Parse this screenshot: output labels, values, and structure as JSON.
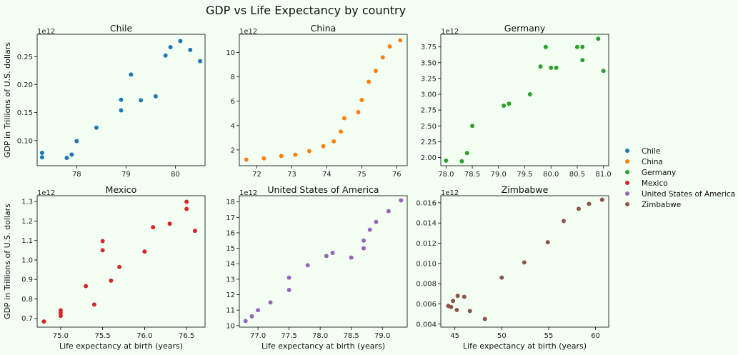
{
  "figure": {
    "title": "GDP vs Life Expectancy by country",
    "xlabel": "Life expectancy at birth (years)",
    "ylabel": "GDP in Trillions of U.S. dollars",
    "offset_label": "1e12"
  },
  "legend": {
    "placement": "right",
    "entries": [
      {
        "name": "Chile",
        "color": "#1f77b4"
      },
      {
        "name": "China",
        "color": "#ff7f0e"
      },
      {
        "name": "Germany",
        "color": "#2ca02c"
      },
      {
        "name": "Mexico",
        "color": "#d62728"
      },
      {
        "name": "United States of America",
        "color": "#9467bd"
      },
      {
        "name": "Zimbabwe",
        "color": "#8c564b"
      }
    ]
  },
  "chart_data": [
    {
      "type": "scatter",
      "title": "Chile",
      "color": "#1f77b4",
      "xlim": [
        77.2,
        80.6
      ],
      "ylim": [
        0.055,
        0.29
      ],
      "xticks": [
        78,
        79,
        80
      ],
      "xtick_labels": [
        "78",
        "79",
        "80"
      ],
      "yticks": [
        0.1,
        0.15,
        0.2,
        0.25
      ],
      "ytick_labels": [
        "0.10",
        "0.15",
        "0.20",
        "0.25"
      ],
      "x": [
        77.3,
        77.3,
        77.8,
        77.9,
        78.0,
        78.4,
        78.9,
        78.9,
        79.1,
        79.3,
        79.6,
        79.8,
        79.9,
        80.1,
        80.3,
        80.5
      ],
      "y": [
        0.078,
        0.07,
        0.069,
        0.075,
        0.099,
        0.123,
        0.154,
        0.173,
        0.218,
        0.172,
        0.179,
        0.252,
        0.267,
        0.278,
        0.262,
        0.242
      ]
    },
    {
      "type": "scatter",
      "title": "China",
      "color": "#ff7f0e",
      "xlim": [
        71.5,
        76.3
      ],
      "ylim": [
        0.7,
        11.5
      ],
      "xticks": [
        72,
        73,
        74,
        75,
        76
      ],
      "xtick_labels": [
        "72",
        "73",
        "74",
        "75",
        "76"
      ],
      "yticks": [
        2,
        4,
        6,
        8,
        10
      ],
      "ytick_labels": [
        "2",
        "4",
        "6",
        "8",
        "10"
      ],
      "x": [
        71.7,
        72.2,
        72.7,
        73.1,
        73.5,
        73.9,
        74.2,
        74.4,
        74.5,
        74.9,
        75.0,
        75.2,
        75.4,
        75.6,
        75.8,
        76.1
      ],
      "y": [
        1.2,
        1.3,
        1.5,
        1.6,
        1.9,
        2.3,
        2.7,
        3.5,
        4.6,
        5.1,
        6.1,
        7.6,
        8.5,
        9.6,
        10.5,
        11.0
      ]
    },
    {
      "type": "scatter",
      "title": "Germany",
      "color": "#2ca02c",
      "xlim": [
        77.9,
        81.1
      ],
      "ylim": [
        1.87,
        3.95
      ],
      "xticks": [
        78.0,
        78.5,
        79.0,
        79.5,
        80.0,
        80.5,
        81.0
      ],
      "xtick_labels": [
        "78.0",
        "78.5",
        "79.0",
        "79.5",
        "80.0",
        "80.5",
        "81.0"
      ],
      "yticks": [
        2.0,
        2.25,
        2.5,
        2.75,
        3.0,
        3.25,
        3.5,
        3.75
      ],
      "ytick_labels": [
        "2.00",
        "2.25",
        "2.50",
        "2.75",
        "3.00",
        "3.25",
        "3.50",
        "3.75"
      ],
      "x": [
        78.0,
        78.3,
        78.4,
        78.5,
        79.1,
        79.2,
        79.6,
        79.8,
        79.9,
        80.0,
        80.1,
        80.5,
        80.6,
        80.6,
        80.9,
        81.0
      ],
      "y": [
        1.95,
        1.94,
        2.07,
        2.5,
        2.82,
        2.85,
        3.0,
        3.44,
        3.75,
        3.42,
        3.42,
        3.75,
        3.75,
        3.54,
        3.88,
        3.37
      ]
    },
    {
      "type": "scatter",
      "title": "Mexico",
      "color": "#d62728",
      "xlim": [
        74.72,
        76.72
      ],
      "ylim": [
        0.655,
        1.33
      ],
      "xticks": [
        75.0,
        75.5,
        76.0,
        76.5
      ],
      "xtick_labels": [
        "75.0",
        "75.5",
        "76.0",
        "76.5"
      ],
      "yticks": [
        0.7,
        0.8,
        0.9,
        1.0,
        1.1,
        1.2,
        1.3
      ],
      "ytick_labels": [
        "0.7",
        "0.8",
        "0.9",
        "1.0",
        "1.1",
        "1.2",
        "1.3"
      ],
      "x": [
        74.8,
        75.0,
        75.0,
        75.0,
        75.3,
        75.4,
        75.5,
        75.5,
        75.6,
        75.7,
        76.0,
        76.1,
        76.3,
        76.5,
        76.5,
        76.6
      ],
      "y": [
        0.684,
        0.741,
        0.727,
        0.713,
        0.866,
        0.771,
        1.05,
        1.097,
        0.894,
        0.964,
        1.043,
        1.168,
        1.186,
        1.262,
        1.299,
        1.15
      ]
    },
    {
      "type": "scatter",
      "title": "United States of America",
      "color": "#9467bd",
      "xlim": [
        76.7,
        79.4
      ],
      "ylim": [
        9.9,
        18.4
      ],
      "xticks": [
        77.0,
        77.5,
        78.0,
        78.5,
        79.0
      ],
      "xtick_labels": [
        "77.0",
        "77.5",
        "78.0",
        "78.5",
        "79.0"
      ],
      "yticks": [
        10,
        11,
        12,
        13,
        14,
        15,
        16,
        17,
        18
      ],
      "ytick_labels": [
        "10",
        "11",
        "12",
        "13",
        "14",
        "15",
        "16",
        "17",
        "18"
      ],
      "x": [
        76.8,
        76.9,
        77.0,
        77.2,
        77.5,
        77.5,
        77.8,
        78.1,
        78.2,
        78.5,
        78.7,
        78.7,
        78.8,
        78.9,
        79.1,
        79.3
      ],
      "y": [
        10.3,
        10.6,
        11.0,
        11.5,
        12.3,
        13.1,
        13.9,
        14.5,
        14.7,
        14.4,
        15.0,
        15.5,
        16.2,
        16.7,
        17.4,
        18.1
      ]
    },
    {
      "type": "scatter",
      "title": "Zimbabwe",
      "color": "#8c564b",
      "xlim": [
        43.5,
        61.4
      ],
      "ylim": [
        0.0037,
        0.0167
      ],
      "xticks": [
        45,
        50,
        55,
        60
      ],
      "xtick_labels": [
        "45",
        "50",
        "55",
        "60"
      ],
      "yticks": [
        0.004,
        0.006,
        0.008,
        0.01,
        0.012,
        0.014,
        0.016
      ],
      "ytick_labels": [
        "0.004",
        "0.006",
        "0.008",
        "0.010",
        "0.012",
        "0.014",
        "0.016"
      ],
      "x": [
        44.3,
        44.6,
        44.8,
        45.2,
        45.3,
        46.0,
        46.6,
        48.2,
        50.0,
        52.4,
        54.9,
        56.6,
        58.2,
        59.3,
        60.7,
        60.7
      ],
      "y": [
        0.0058,
        0.0057,
        0.0063,
        0.0054,
        0.0068,
        0.0067,
        0.0053,
        0.0045,
        0.0086,
        0.0101,
        0.0121,
        0.0142,
        0.0154,
        0.0159,
        0.0163,
        0.0163
      ]
    }
  ]
}
